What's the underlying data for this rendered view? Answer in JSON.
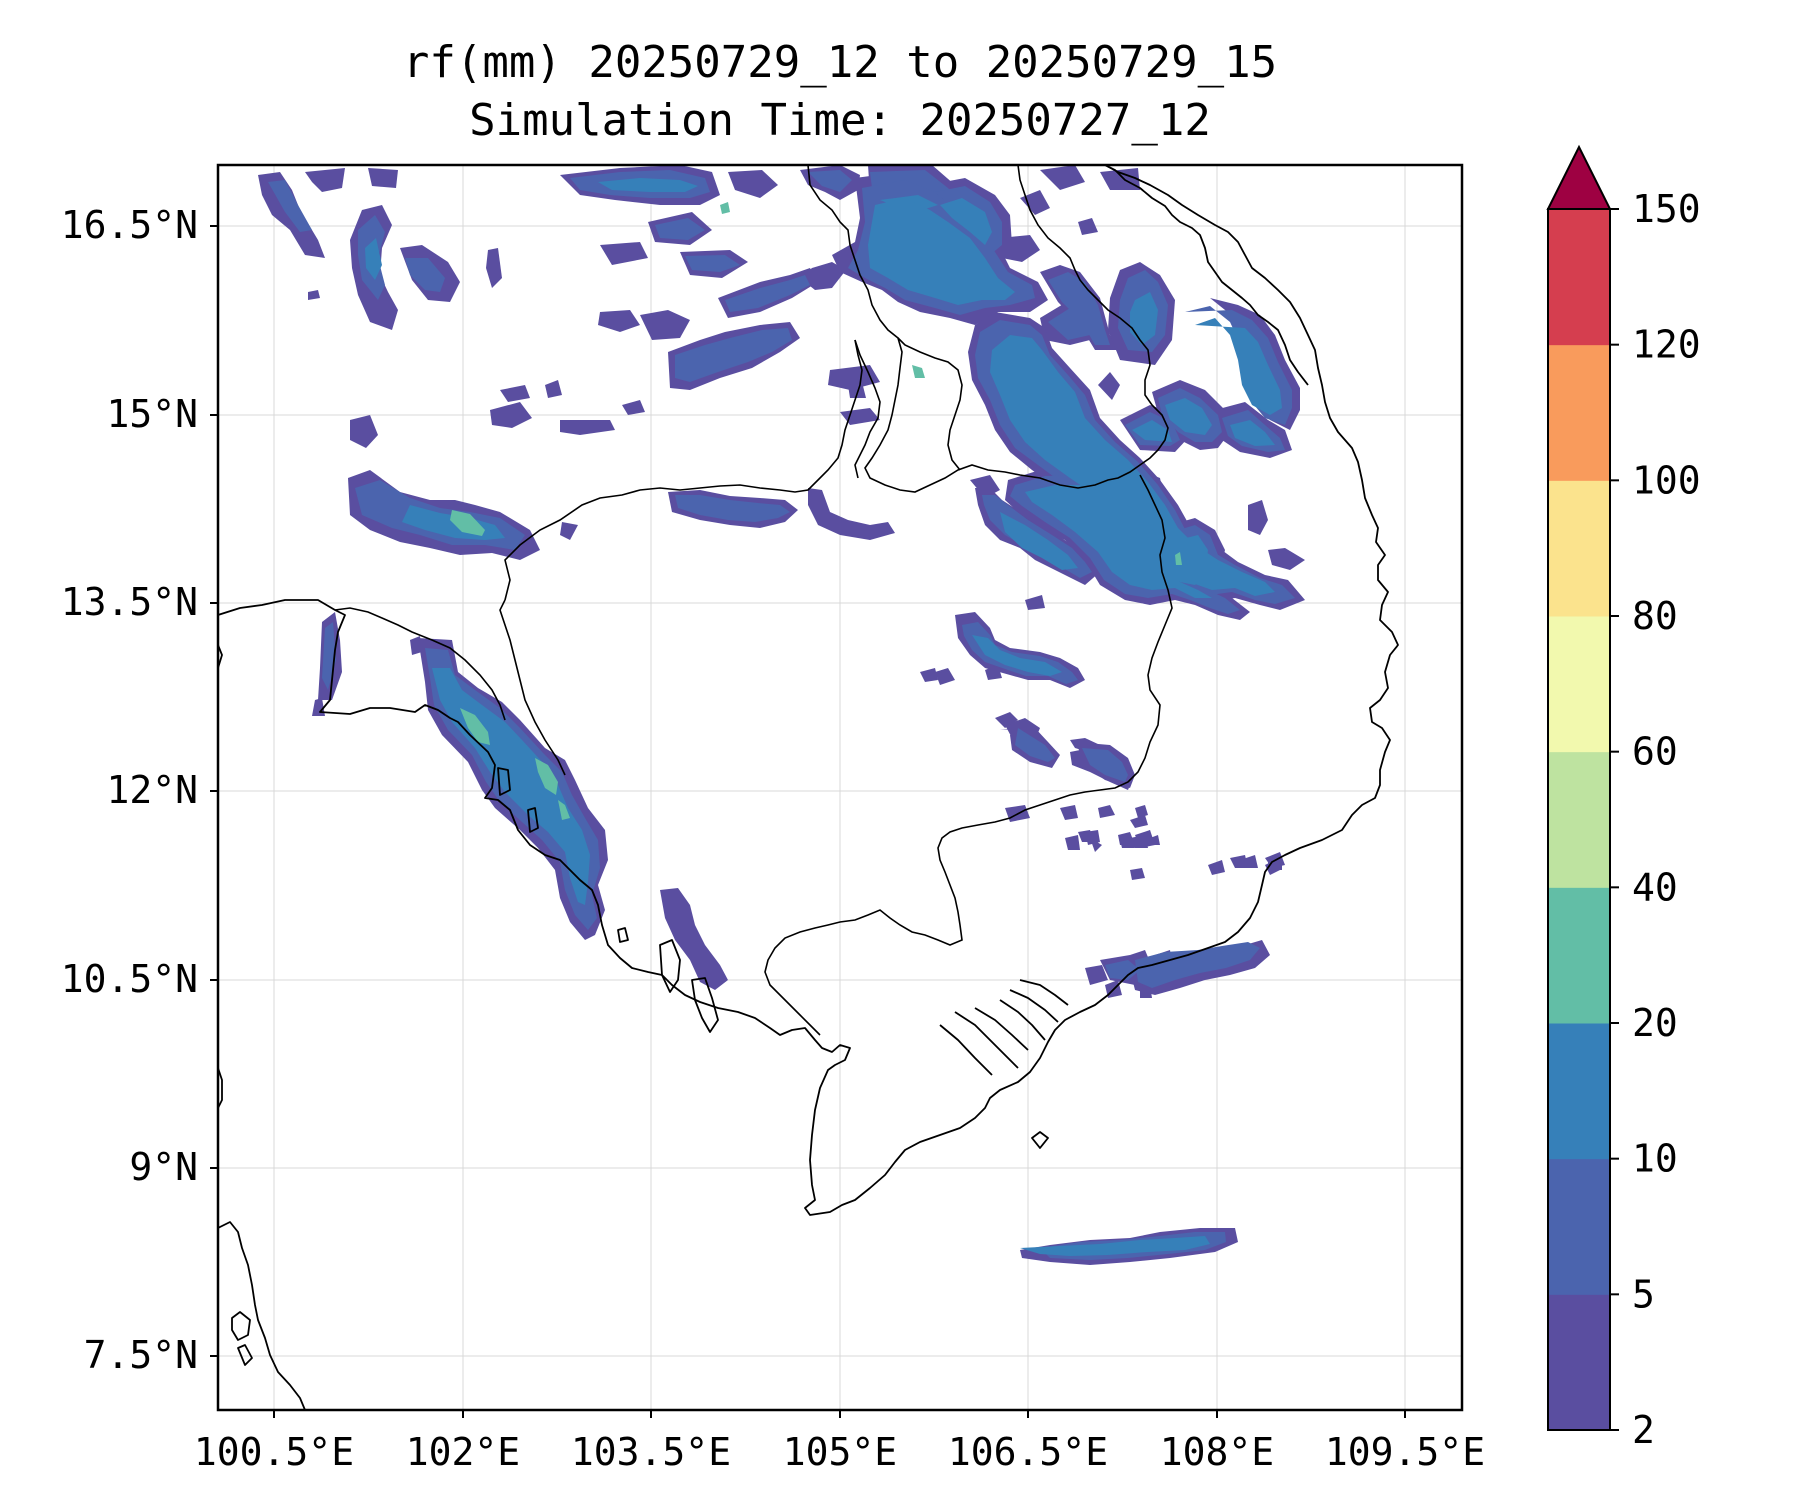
{
  "title": {
    "line1": "rf(mm) 20250729_12 to 20250729_15",
    "line2": "Simulation Time: 20250727_12"
  },
  "map": {
    "lon_ticks": [
      "100.5°E",
      "102°E",
      "103.5°E",
      "105°E",
      "106.5°E",
      "108°E",
      "109.5°E"
    ],
    "lat_ticks": [
      "16.5°N",
      "15°N",
      "13.5°N",
      "12°N",
      "10.5°N",
      "9°N",
      "7.5°N"
    ],
    "gridlines": true,
    "colormap": "Spectral_r"
  },
  "colorbar": {
    "levels": [
      "2",
      "5",
      "10",
      "20",
      "40",
      "60",
      "80",
      "100",
      "120",
      "150"
    ],
    "colors": [
      "#5a4ea0",
      "#4b64ae",
      "#3680b9",
      "#62bea6",
      "#bee3a0",
      "#f2f9ae",
      "#fbe38d",
      "#f99b5c",
      "#d53e4f",
      "#9e0142"
    ],
    "extend": "max"
  }
}
